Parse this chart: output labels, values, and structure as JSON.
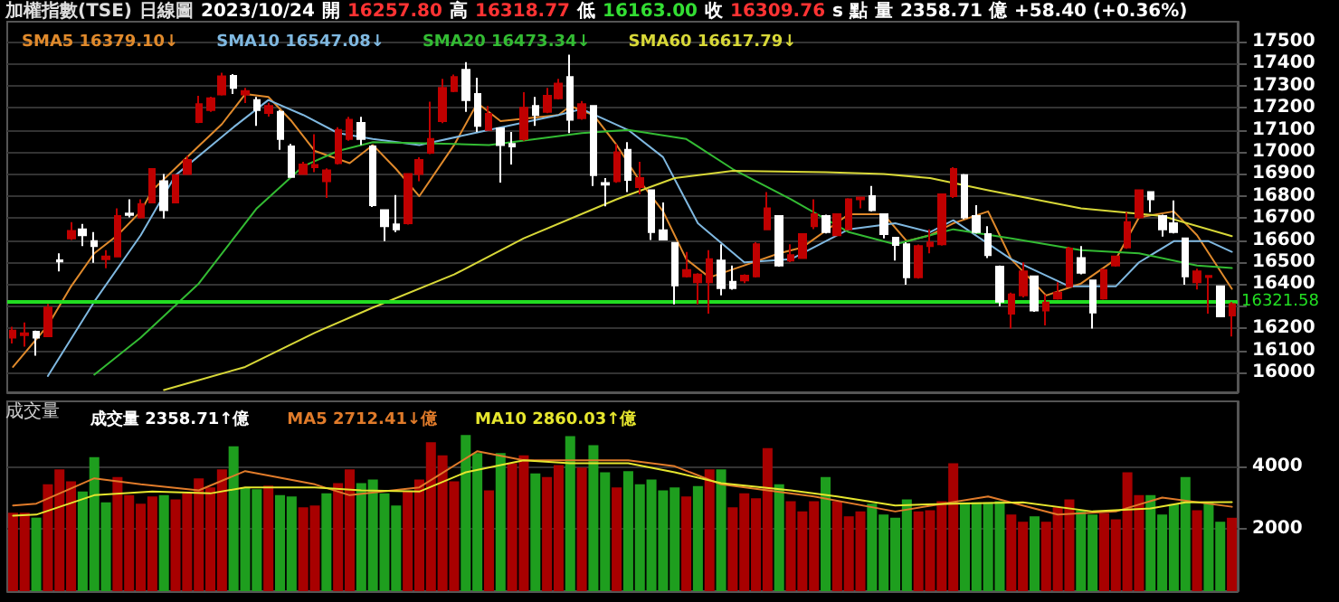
{
  "chart_data": [
    {
      "type": "candlestick",
      "title": "加權指數(TSE)",
      "subtitle": "日線圖",
      "annotations": [
        "2023/10/24",
        "開",
        "16257.80",
        "高",
        "16318.77",
        "低",
        "16163.00",
        "收",
        "16309.76",
        "s 點",
        "量",
        "2358.71 億",
        "+58.40 (+0.36%)"
      ],
      "categories": [
        null,
        null,
        null,
        null,
        null,
        null,
        null,
        null,
        null,
        null,
        null,
        null,
        null,
        null,
        null,
        null,
        null,
        null,
        null,
        null,
        null,
        null,
        null,
        null,
        null,
        null,
        null,
        null,
        null,
        null,
        null,
        null,
        null,
        null,
        null,
        null,
        null,
        null,
        null,
        null,
        null,
        null,
        null,
        null,
        null,
        null,
        null,
        null,
        null,
        null,
        null,
        null,
        null,
        null,
        null,
        null,
        null,
        null,
        null,
        null,
        null,
        null,
        null,
        null,
        null,
        null,
        null,
        null,
        null,
        null,
        null,
        null,
        null,
        null,
        null,
        null,
        null,
        null,
        null,
        null,
        null,
        null,
        null,
        null,
        null,
        null,
        null,
        null,
        null,
        null,
        null,
        null,
        null,
        null,
        null,
        null,
        null,
        null,
        null,
        null,
        null,
        null,
        null,
        null,
        null,
        null
      ],
      "series": [
        {
          "ohlc": [
            [
              16158,
              16207,
              16131,
              16190
            ],
            [
              16169,
              16227,
              16117,
              16177
            ],
            [
              16185,
              16190,
              16076,
              16158
            ],
            [
              16164,
              16311,
              16164,
              16294
            ],
            [
              16508,
              16540,
              16458,
              16503
            ],
            [
              16608,
              16681,
              16600,
              16641
            ],
            [
              16649,
              16673,
              16573,
              16622
            ],
            [
              16595,
              16636,
              16497,
              16573
            ],
            [
              16513,
              16554,
              16472,
              16526
            ],
            [
              16526,
              16744,
              16526,
              16709
            ],
            [
              16720,
              16785,
              16703,
              16714
            ],
            [
              16703,
              16785,
              16698,
              16763
            ],
            [
              16771,
              16922,
              16771,
              16922
            ],
            [
              16867,
              16900,
              16698,
              16736
            ],
            [
              16771,
              16894,
              16771,
              16894
            ],
            [
              16900,
              16982,
              16900,
              16963
            ],
            [
              17135,
              17254,
              17130,
              17216
            ],
            [
              17189,
              17250,
              17181,
              17243
            ],
            [
              17260,
              17358,
              17255,
              17342
            ],
            [
              17344,
              17352,
              17262,
              17290
            ],
            [
              17260,
              17290,
              17221,
              17276
            ],
            [
              17235,
              17249,
              17118,
              17189
            ],
            [
              17176,
              17222,
              17160,
              17208
            ],
            [
              17181,
              17189,
              17009,
              17058
            ],
            [
              17025,
              17036,
              16886,
              16886
            ],
            [
              16900,
              16955,
              16900,
              16943
            ],
            [
              16930,
              17080,
              16908,
              16941
            ],
            [
              16867,
              16925,
              16791,
              16916
            ],
            [
              16949,
              17112,
              16943,
              17099
            ],
            [
              17058,
              17159,
              17050,
              17145
            ],
            [
              17131,
              17159,
              17031,
              17058
            ],
            [
              17025,
              17031,
              16750,
              16758
            ],
            [
              16736,
              16740,
              16595,
              16663
            ],
            [
              16671,
              16804,
              16636,
              16649
            ],
            [
              16676,
              16900,
              16670,
              16900
            ],
            [
              16900,
              16975,
              16867,
              16963
            ],
            [
              16996,
              17227,
              16990,
              17058
            ],
            [
              17139,
              17331,
              17130,
              17290
            ],
            [
              17276,
              17350,
              17270,
              17339
            ],
            [
              17372,
              17407,
              17181,
              17235
            ],
            [
              17262,
              17336,
              17090,
              17118
            ],
            [
              17099,
              17208,
              17095,
              17172
            ],
            [
              17107,
              17110,
              16861,
              17031
            ],
            [
              17036,
              17090,
              16943,
              17025
            ],
            [
              17058,
              17270,
              17050,
              17200
            ],
            [
              17208,
              17249,
              17118,
              17167
            ],
            [
              17181,
              17290,
              17175,
              17254
            ],
            [
              17243,
              17331,
              17238,
              17309
            ],
            [
              17339,
              17440,
              17085,
              17145
            ],
            [
              17153,
              17230,
              17145,
              17216
            ],
            [
              17208,
              17212,
              16845,
              16894
            ],
            [
              16859,
              16881,
              16753,
              16851
            ],
            [
              16867,
              17036,
              16860,
              16998
            ],
            [
              17009,
              17044,
              16818,
              16873
            ],
            [
              16840,
              16955,
              16807,
              16881
            ],
            [
              16826,
              16830,
              16600,
              16636
            ],
            [
              16644,
              16771,
              16603,
              16603
            ],
            [
              16587,
              16590,
              16308,
              16395
            ],
            [
              16436,
              16546,
              16430,
              16464
            ],
            [
              16409,
              16450,
              16308,
              16444
            ],
            [
              16409,
              16554,
              16267,
              16513
            ],
            [
              16507,
              16581,
              16349,
              16382
            ],
            [
              16411,
              16485,
              16375,
              16382
            ],
            [
              16417,
              16445,
              16405,
              16439
            ],
            [
              16436,
              16590,
              16430,
              16581
            ],
            [
              16649,
              16818,
              16645,
              16744
            ],
            [
              16709,
              16712,
              16480,
              16485
            ],
            [
              16507,
              16581,
              16500,
              16532
            ],
            [
              16518,
              16630,
              16515,
              16627
            ],
            [
              16663,
              16785,
              16650,
              16717
            ],
            [
              16709,
              16715,
              16630,
              16636
            ],
            [
              16622,
              16720,
              16618,
              16717
            ],
            [
              16649,
              16790,
              16645,
              16785
            ],
            [
              16785,
              16793,
              16744,
              16793
            ],
            [
              16799,
              16845,
              16730,
              16736
            ],
            [
              16717,
              16720,
              16608,
              16627
            ],
            [
              16611,
              16615,
              16507,
              16578
            ],
            [
              16581,
              16590,
              16398,
              16431
            ],
            [
              16431,
              16580,
              16425,
              16573
            ],
            [
              16573,
              16649,
              16540,
              16589
            ],
            [
              16581,
              16807,
              16575,
              16807
            ],
            [
              16799,
              16930,
              16791,
              16922
            ],
            [
              16894,
              16900,
              16695,
              16703
            ],
            [
              16709,
              16758,
              16630,
              16636
            ],
            [
              16627,
              16663,
              16518,
              16532
            ],
            [
              16480,
              16485,
              16300,
              16321
            ],
            [
              16267,
              16362,
              16199,
              16354
            ],
            [
              16349,
              16499,
              16340,
              16458
            ],
            [
              16436,
              16440,
              16275,
              16281
            ],
            [
              16281,
              16354,
              16213,
              16317
            ],
            [
              16335,
              16409,
              16330,
              16362
            ],
            [
              16390,
              16570,
              16385,
              16562
            ],
            [
              16518,
              16573,
              16445,
              16452
            ],
            [
              16417,
              16420,
              16199,
              16272
            ],
            [
              16335,
              16470,
              16330,
              16464
            ],
            [
              16485,
              16530,
              16480,
              16526
            ],
            [
              16567,
              16726,
              16560,
              16681
            ],
            [
              16703,
              16826,
              16698,
              16826
            ],
            [
              16818,
              16822,
              16726,
              16785
            ],
            [
              16709,
              16715,
              16616,
              16649
            ],
            [
              16676,
              16780,
              16630,
              16636
            ],
            [
              16608,
              16612,
              16398,
              16436
            ],
            [
              16409,
              16470,
              16376,
              16458
            ],
            [
              16432,
              16441,
              16267,
              16438
            ],
            [
              16390,
              16395,
              16250,
              16254
            ],
            [
              16257.8,
              16318.77,
              16163.0,
              16309.76
            ]
          ],
          "colors": [
            "#c00000",
            "#c00000",
            "#ffffff",
            "#c00000",
            "#ffffff",
            "#c00000",
            "#ffffff",
            "#ffffff",
            "#c00000",
            "#c00000",
            "#ffffff",
            "#c00000",
            "#c00000",
            "#ffffff",
            "#c00000",
            "#c00000",
            "#c00000",
            "#c00000",
            "#c00000",
            "#ffffff",
            "#c00000",
            "#ffffff",
            "#c00000",
            "#ffffff",
            "#ffffff",
            "#c00000",
            "#c00000",
            "#c00000",
            "#c00000",
            "#c00000",
            "#ffffff",
            "#ffffff",
            "#ffffff",
            "#ffffff",
            "#c00000",
            "#c00000",
            "#c00000",
            "#c00000",
            "#c00000",
            "#ffffff",
            "#ffffff",
            "#c00000",
            "#ffffff",
            "#ffffff",
            "#c00000",
            "#ffffff",
            "#c00000",
            "#c00000",
            "#ffffff",
            "#c00000",
            "#ffffff",
            "#ffffff",
            "#c00000",
            "#ffffff",
            "#c00000",
            "#ffffff",
            "#ffffff",
            "#ffffff",
            "#c00000",
            "#c00000",
            "#c00000",
            "#ffffff",
            "#ffffff",
            "#c00000",
            "#c00000",
            "#c00000",
            "#ffffff",
            "#c00000",
            "#c00000",
            "#c00000",
            "#ffffff",
            "#c00000",
            "#c00000",
            "#c00000",
            "#ffffff",
            "#ffffff",
            "#ffffff",
            "#ffffff",
            "#c00000",
            "#c00000",
            "#c00000",
            "#c00000",
            "#ffffff",
            "#ffffff",
            "#ffffff",
            "#ffffff",
            "#c00000",
            "#c00000",
            "#ffffff",
            "#c00000",
            "#c00000",
            "#c00000",
            "#ffffff",
            "#ffffff",
            "#c00000",
            "#c00000",
            "#c00000",
            "#c00000",
            "#ffffff",
            "#ffffff",
            "#ffffff",
            "#ffffff",
            "#c00000",
            "#c00000",
            "#ffffff",
            "#c00000"
          ]
        },
        {
          "type": "line",
          "name": "SMA5 16379.10↓",
          "color": "#e08a2c",
          "values": [
            16025,
            null,
            null,
            16213,
            null,
            16390,
            null,
            16540,
            null,
            16622,
            null,
            16730,
            16826,
            null,
            null,
            16976,
            null,
            null,
            17126,
            null,
            17262,
            null,
            17249,
            null,
            17139,
            null,
            17004,
            null,
            null,
            16949,
            null,
            17031,
            null,
            16922,
            null,
            16799,
            null,
            null,
            17031,
            null,
            17221,
            null,
            17139,
            null,
            null,
            null,
            null,
            17167,
            17208,
            null,
            17167,
            null,
            17031,
            null,
            16867,
            null,
            16730,
            null,
            16513,
            null,
            16431,
            null,
            null,
            16485,
            null,
            null,
            16540,
            null,
            16567,
            null,
            null,
            null,
            16717,
            null,
            null,
            16717,
            null,
            16595,
            null,
            16622,
            null,
            16676,
            null,
            null,
            16730,
            null,
            16513,
            null,
            null,
            16349,
            null,
            null,
            16403,
            null,
            null,
            16513,
            null,
            16703,
            null,
            null,
            16730,
            null,
            16622,
            null,
            null,
            16379
          ]
        },
        {
          "type": "line",
          "name": "SMA10 16547.08↓",
          "color": "#7fb8e0",
          "values": [
            null,
            null,
            null,
            15984,
            null,
            null,
            null,
            16321,
            null,
            null,
            null,
            16622,
            null,
            null,
            16894,
            null,
            null,
            null,
            null,
            17112,
            null,
            null,
            17235,
            null,
            null,
            17167,
            null,
            null,
            17085,
            null,
            null,
            17058,
            null,
            null,
            null,
            17031,
            null,
            null,
            null,
            null,
            null,
            17099,
            null,
            null,
            null,
            null,
            null,
            17167,
            null,
            17194,
            null,
            null,
            null,
            17099,
            null,
            null,
            16976,
            null,
            null,
            16676,
            null,
            null,
            null,
            16499,
            null,
            null,
            null,
            16513,
            null,
            null,
            null,
            null,
            16649,
            null,
            null,
            null,
            16676,
            null,
            null,
            16636,
            null,
            16690,
            null,
            null,
            null,
            null,
            16513,
            null,
            null,
            null,
            null,
            16390,
            null,
            null,
            null,
            16390,
            null,
            16499,
            null,
            null,
            16595,
            null,
            null,
            16595,
            null,
            16547
          ]
        },
        {
          "type": "line",
          "name": "SMA20 16473.34↓",
          "color": "#33bb33",
          "values": [
            null,
            null,
            null,
            null,
            null,
            null,
            null,
            15990,
            null,
            null,
            null,
            16158,
            null,
            null,
            null,
            null,
            16403,
            null,
            null,
            null,
            null,
            16744,
            null,
            null,
            null,
            16935,
            null,
            null,
            17004,
            null,
            null,
            17044,
            null,
            null,
            null,
            null,
            null,
            null,
            17036,
            null,
            null,
            17031,
            null,
            null,
            null,
            null,
            null,
            null,
            null,
            17085,
            null,
            null,
            null,
            17099,
            null,
            null,
            null,
            null,
            17058,
            null,
            null,
            null,
            16922,
            null,
            null,
            null,
            null,
            16785,
            null,
            null,
            null,
            null,
            16636,
            null,
            null,
            null,
            16581,
            null,
            null,
            null,
            null,
            16649,
            null,
            null,
            null,
            null,
            16608,
            null,
            null,
            null,
            null,
            null,
            16554,
            null,
            null,
            null,
            null,
            16540,
            null,
            null,
            null,
            null,
            16485,
            null,
            null,
            16473
          ]
        },
        {
          "type": "line",
          "name": "SMA60 16617.79↓",
          "color": "#d8d838",
          "values": [
            null,
            null,
            null,
            null,
            null,
            null,
            null,
            null,
            null,
            null,
            null,
            null,
            null,
            15920,
            null,
            null,
            null,
            null,
            null,
            null,
            16025,
            null,
            null,
            null,
            null,
            null,
            16180,
            null,
            null,
            null,
            null,
            16294,
            null,
            null,
            null,
            null,
            null,
            null,
            16444,
            null,
            null,
            null,
            null,
            null,
            16608,
            null,
            null,
            null,
            null,
            null,
            null,
            null,
            16785,
            null,
            null,
            null,
            null,
            16881,
            null,
            null,
            null,
            null,
            16914,
            null,
            null,
            null,
            null,
            null,
            null,
            null,
            16908,
            null,
            null,
            null,
            null,
            16900,
            null,
            null,
            null,
            16881,
            null,
            null,
            null,
            null,
            16826,
            null,
            null,
            null,
            null,
            null,
            null,
            null,
            16744,
            null,
            null,
            null,
            null,
            null,
            null,
            16709,
            null,
            null,
            null,
            null,
            null,
            16618
          ]
        }
      ],
      "ylim": [
        15910,
        17590
      ],
      "yticks": [
        16000,
        16100,
        16200,
        {
          "value": 16300,
          "label": null
        },
        16400,
        16500,
        16600,
        16700,
        16800,
        16900,
        17000,
        17100,
        17200,
        17300,
        17400,
        17500
      ],
      "ref_lines": [
        {
          "axis": "y",
          "value": 16321.58,
          "label": "16321.58",
          "color": "#22dd22"
        }
      ],
      "grid": "y",
      "legend": "top left",
      "tick_labels": "y"
    },
    {
      "type": "bar",
      "ylabel": "成交量",
      "categories": [
        null,
        null,
        null,
        null,
        null,
        null,
        null,
        null,
        null,
        null,
        null,
        null,
        null,
        null,
        null,
        null,
        null,
        null,
        null,
        null,
        null,
        null,
        null,
        null,
        null,
        null,
        null,
        null,
        null,
        null,
        null,
        null,
        null,
        null,
        null,
        null,
        null,
        null,
        null,
        null,
        null,
        null,
        null,
        null,
        null,
        null,
        null,
        null,
        null,
        null,
        null,
        null,
        null,
        null,
        null,
        null,
        null,
        null,
        null,
        null,
        null,
        null,
        null,
        null,
        null,
        null,
        null,
        null,
        null,
        null,
        null,
        null,
        null,
        null,
        null,
        null,
        null,
        null,
        null,
        null,
        null,
        null,
        null,
        null,
        null,
        null,
        null,
        null,
        null,
        null,
        null,
        null,
        null,
        null,
        null,
        null,
        null,
        null,
        null,
        null,
        null,
        null,
        null,
        null,
        null,
        null
      ],
      "series": [
        {
          "name": "成交量 2358.71↑億",
          "values": [
            2522,
            2522,
            2363,
            3432,
            3916,
            3529,
            3199,
            4303,
            2851,
            3664,
            3083,
            2812,
            3044,
            3083,
            2948,
            3141,
            3625,
            3335,
            3916,
            4652,
            3335,
            3277,
            3393,
            3083,
            3044,
            2696,
            2754,
            3141,
            3470,
            3916,
            3470,
            3587,
            3141,
            2754,
            3199,
            3587,
            4787,
            4361,
            3529,
            5020,
            4439,
            3238,
            4439,
            4110,
            4361,
            3781,
            3664,
            4051,
            4981,
            3974,
            4690,
            3819,
            3335,
            3858,
            3432,
            3587,
            3238,
            3335,
            3044,
            3374,
            3916,
            3916,
            2696,
            3141,
            2986,
            4594,
            3432,
            2890,
            2560,
            2890,
            3664,
            2890,
            2405,
            2560,
            2812,
            2463,
            2363,
            2948,
            2560,
            2599,
            2890,
            4110,
            2851,
            2851,
            2851,
            2890,
            2463,
            2231,
            2405,
            2231,
            2696,
            2948,
            2599,
            2463,
            2502,
            2308,
            3819,
            3083,
            3083,
            2463,
            2793,
            3664,
            2599,
            2851,
            2231,
            2358.71
          ],
          "colors": [
            "#a80000",
            "#a80000",
            "#1e9e1e",
            "#a80000",
            "#a80000",
            "#a80000",
            "#1e9e1e",
            "#1e9e1e",
            "#1e9e1e",
            "#a80000",
            "#a80000",
            "#a80000",
            "#a80000",
            "#1e9e1e",
            "#a80000",
            "#a80000",
            "#a80000",
            "#a80000",
            "#a80000",
            "#1e9e1e",
            "#1e9e1e",
            "#1e9e1e",
            "#a80000",
            "#1e9e1e",
            "#1e9e1e",
            "#a80000",
            "#a80000",
            "#1e9e1e",
            "#a80000",
            "#a80000",
            "#1e9e1e",
            "#1e9e1e",
            "#1e9e1e",
            "#1e9e1e",
            "#a80000",
            "#a80000",
            "#a80000",
            "#a80000",
            "#a80000",
            "#1e9e1e",
            "#1e9e1e",
            "#a80000",
            "#1e9e1e",
            "#a80000",
            "#a80000",
            "#1e9e1e",
            "#a80000",
            "#a80000",
            "#1e9e1e",
            "#a80000",
            "#1e9e1e",
            "#1e9e1e",
            "#a80000",
            "#1e9e1e",
            "#1e9e1e",
            "#1e9e1e",
            "#1e9e1e",
            "#1e9e1e",
            "#a80000",
            "#1e9e1e",
            "#a80000",
            "#1e9e1e",
            "#a80000",
            "#a80000",
            "#a80000",
            "#a80000",
            "#1e9e1e",
            "#a80000",
            "#a80000",
            "#a80000",
            "#1e9e1e",
            "#a80000",
            "#a80000",
            "#a80000",
            "#1e9e1e",
            "#1e9e1e",
            "#1e9e1e",
            "#1e9e1e",
            "#a80000",
            "#a80000",
            "#a80000",
            "#a80000",
            "#1e9e1e",
            "#1e9e1e",
            "#1e9e1e",
            "#1e9e1e",
            "#a80000",
            "#a80000",
            "#1e9e1e",
            "#a80000",
            "#a80000",
            "#a80000",
            "#1e9e1e",
            "#1e9e1e",
            "#a80000",
            "#a80000",
            "#a80000",
            "#a80000",
            "#1e9e1e",
            "#1e9e1e",
            "#1e9e1e",
            "#1e9e1e",
            "#a80000",
            "#1e9e1e",
            "#1e9e1e",
            "#a80000"
          ]
        },
        {
          "type": "line",
          "name": "MA5 2712.41↓億",
          "color": "#e07b2a",
          "values": [
            2754,
            null,
            2812,
            null,
            null,
            null,
            null,
            3625,
            null,
            null,
            null,
            3432,
            null,
            null,
            null,
            null,
            3238,
            null,
            null,
            null,
            3858,
            null,
            null,
            null,
            null,
            null,
            3432,
            null,
            null,
            3083,
            null,
            null,
            null,
            null,
            null,
            3335,
            null,
            null,
            null,
            null,
            4497,
            null,
            null,
            null,
            4206,
            null,
            null,
            null,
            4206,
            null,
            null,
            null,
            null,
            4206,
            null,
            null,
            null,
            4013,
            null,
            null,
            null,
            3432,
            null,
            null,
            null,
            null,
            null,
            null,
            null,
            3044,
            null,
            null,
            null,
            null,
            null,
            null,
            2560,
            null,
            null,
            null,
            null,
            null,
            null,
            null,
            3044,
            null,
            null,
            null,
            null,
            null,
            2463,
            null,
            null,
            null,
            null,
            2560,
            null,
            null,
            null,
            3005,
            null,
            null,
            null,
            null,
            null,
            2712.41
          ]
        },
        {
          "type": "line",
          "name": "MA10 2860.03↑億",
          "color": "#e6e62e",
          "values": [
            2424,
            null,
            2459,
            null,
            null,
            null,
            null,
            3083,
            null,
            null,
            null,
            null,
            3199,
            null,
            null,
            null,
            null,
            3141,
            null,
            null,
            3335,
            null,
            null,
            null,
            null,
            null,
            3335,
            null,
            null,
            null,
            3238,
            null,
            null,
            null,
            null,
            3199,
            null,
            null,
            null,
            3819,
            null,
            null,
            null,
            null,
            4206,
            null,
            null,
            null,
            4110,
            null,
            null,
            null,
            null,
            4110,
            null,
            null,
            null,
            3819,
            null,
            null,
            null,
            3470,
            null,
            null,
            null,
            null,
            null,
            3238,
            null,
            null,
            null,
            3044,
            null,
            null,
            null,
            null,
            2754,
            null,
            null,
            null,
            null,
            2812,
            null,
            null,
            null,
            null,
            null,
            2851,
            null,
            null,
            null,
            null,
            null,
            2560,
            null,
            null,
            null,
            null,
            2657,
            null,
            null,
            2851,
            null,
            null,
            null,
            2860.03
          ]
        }
      ],
      "ylim": [
        0,
        6100
      ],
      "yticks": [
        2000,
        4000
      ],
      "grid": "y",
      "legend": "top left",
      "tick_labels": "y"
    }
  ]
}
